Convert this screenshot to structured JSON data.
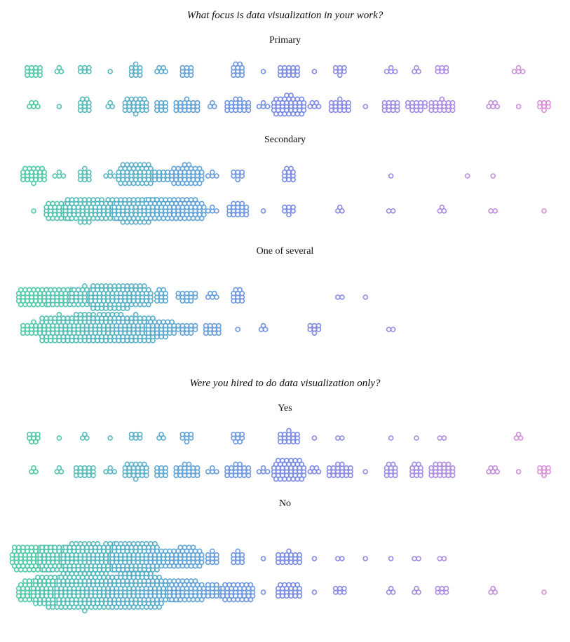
{
  "chart_data": {
    "type": "scatter",
    "style": "beeswarm",
    "color_gradient": [
      "#4ec9a4",
      "#5aa6d2",
      "#7b86e6",
      "#a98be0",
      "#e38ed4"
    ],
    "bins": 22,
    "panels": [
      {
        "question": "What focus is data visualization in your work?",
        "groups": [
          {
            "label": "Primary",
            "row_counts": [
              [
                12,
                3,
                6,
                1,
                10,
                5,
                9,
                0,
                11,
                1,
                15,
                1,
                7,
                0,
                4,
                3,
                6,
                0,
                0,
                4,
                0,
                0
              ],
              [
                5,
                1,
                11,
                3,
                24,
                9,
                19,
                3,
                20,
                4,
                40,
                5,
                16,
                1,
                12,
                13,
                19,
                0,
                5,
                1,
                7,
                0
              ]
            ]
          },
          {
            "label": "Secondary",
            "row_counts": [
              [
                24,
                4,
                10,
                4,
                50,
                12,
                40,
                4,
                7,
                0,
                11,
                0,
                0,
                0,
                1,
                0,
                0,
                1,
                1,
                0,
                0,
                0
              ],
              [
                1,
                33,
                60,
                40,
                70,
                50,
                48,
                4,
                18,
                1,
                7,
                0,
                3,
                0,
                2,
                0,
                3,
                0,
                2,
                0,
                1,
                0
              ]
            ]
          },
          {
            "label": "One of several",
            "row_counts": [
              [
                38,
                37,
                34,
                66,
                43,
                11,
                13,
                5,
                11,
                0,
                0,
                0,
                2,
                1,
                0,
                0,
                0,
                0,
                0,
                0,
                0,
                0
              ],
              [
                19,
                67,
                85,
                86,
                67,
                30,
                13,
                12,
                1,
                3,
                0,
                7,
                0,
                0,
                2,
                0,
                0,
                0,
                0,
                0,
                0,
                0
              ]
            ]
          }
        ]
      },
      {
        "question": "Were you hired to do data visualization only?",
        "groups": [
          {
            "label": "Yes",
            "row_counts": [
              [
                8,
                1,
                3,
                1,
                6,
                3,
                7,
                0,
                8,
                0,
                16,
                1,
                2,
                0,
                1,
                1,
                2,
                0,
                0,
                3,
                0,
                0
              ],
              [
                3,
                3,
                15,
                4,
                24,
                9,
                20,
                4,
                20,
                4,
                44,
                5,
                20,
                1,
                11,
                11,
                22,
                0,
                5,
                1,
                7,
                0
              ]
            ]
          },
          {
            "label": "No",
            "row_counts": [
              [
                72,
                65,
                80,
                76,
                95,
                38,
                42,
                10,
                10,
                1,
                19,
                1,
                2,
                1,
                1,
                2,
                2,
                0,
                0,
                0,
                0,
                0
              ],
              [
                43,
                104,
                130,
                90,
                126,
                58,
                48,
                18,
                38,
                1,
                23,
                1,
                6,
                0,
                3,
                3,
                6,
                0,
                3,
                0,
                1,
                0
              ]
            ]
          }
        ]
      }
    ]
  }
}
